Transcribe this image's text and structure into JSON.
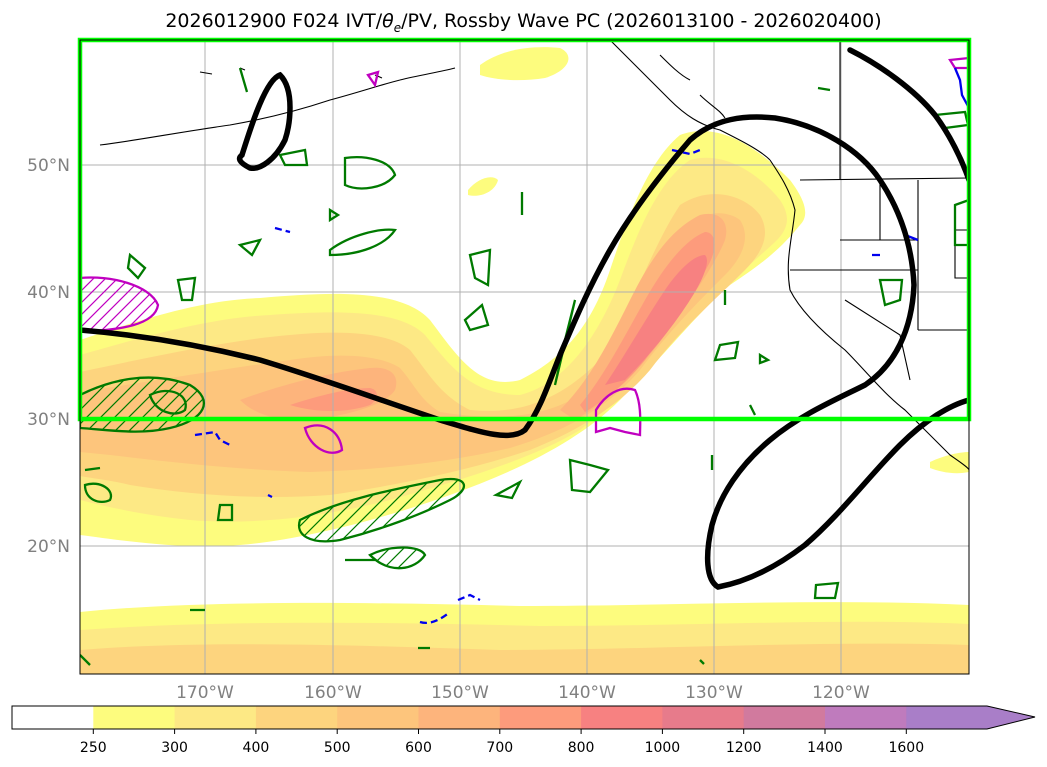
{
  "title": {
    "prefix": "2026012900 F024 IVT/",
    "theta_symbol": "θ",
    "theta_sub": "e",
    "suffix": "/PV, Rossby Wave PC (2026013100 - 2026020400)"
  },
  "lat_labels": [
    "50°N",
    "40°N",
    "30°N",
    "20°N"
  ],
  "lon_labels": [
    "170°W",
    "160°W",
    "150°W",
    "140°W",
    "130°W",
    "120°W"
  ],
  "colorbar": {
    "ticks": [
      "250",
      "300",
      "400",
      "500",
      "600",
      "700",
      "800",
      "1000",
      "1200",
      "1400",
      "1600"
    ],
    "colors": [
      "#ffffff",
      "#fdfc7e",
      "#fde985",
      "#fdd47e",
      "#fdc57c",
      "#fdb47c",
      "#fd9b7c",
      "#f78181",
      "#e77b8b",
      "#d17a9e",
      "#bf7bbd",
      "#a97ec8"
    ]
  },
  "colors": {
    "box": "#00ff00",
    "rossby_pc": "#000000",
    "theta_e": "#007a00",
    "pv_magenta": "#c000c0",
    "pv_blue": "#0000ee",
    "coastline": "#000000",
    "grid": "#b0b0b0"
  }
}
